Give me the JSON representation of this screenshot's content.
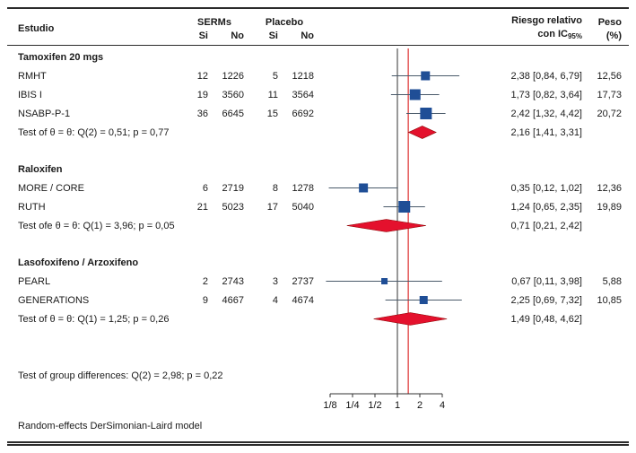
{
  "header": {
    "study": "Estudio",
    "serms": "SERMs",
    "placebo": "Placebo",
    "si": "Si",
    "no": "No",
    "rr_line1": "Riesgo relativo",
    "rr_line2": "con IC",
    "rr_sub": "95%",
    "peso_line1": "Peso",
    "peso_line2": "(%)"
  },
  "footer": {
    "group_diff": "Test of group differences: Q(2) = 2,98; p = 0,22",
    "model": "Random-effects DerSimonian-Laird model"
  },
  "chart_data": {
    "type": "forest",
    "x_scale": "log2",
    "x_ticks": [
      {
        "label": "1/8",
        "value": 0.125
      },
      {
        "label": "1/4",
        "value": 0.25
      },
      {
        "label": "1/2",
        "value": 0.5
      },
      {
        "label": "1",
        "value": 1
      },
      {
        "label": "2",
        "value": 2
      },
      {
        "label": "4",
        "value": 4
      }
    ],
    "null_line_value": 1,
    "overall_line_value": 1.4,
    "colors": {
      "square": "#1f4e96",
      "ci": "#4a5a6a",
      "diamond": "#e4112d",
      "diamond_edge": "#8b0000",
      "ref_line": "#333333",
      "overall_line": "#e03c3c",
      "axis": "#333333"
    },
    "groups": [
      {
        "title": "Tamoxifen 20 mgs",
        "studies": [
          {
            "name": "RMHT",
            "serms_si": "12",
            "serms_no": "1226",
            "placebo_si": "5",
            "placebo_no": "1218",
            "est": 2.38,
            "lo": 0.84,
            "hi": 6.79,
            "rr_text": "2,38 [0,84, 6,79]",
            "weight": "12,56",
            "w": 12.56
          },
          {
            "name": "IBIS I",
            "serms_si": "19",
            "serms_no": "3560",
            "placebo_si": "11",
            "placebo_no": "3564",
            "est": 1.73,
            "lo": 0.82,
            "hi": 3.64,
            "rr_text": "1,73 [0,82, 3,64]",
            "weight": "17,73",
            "w": 17.73
          },
          {
            "name": "NSABP-P-1",
            "serms_si": "36",
            "serms_no": "6645",
            "placebo_si": "15",
            "placebo_no": "6692",
            "est": 2.42,
            "lo": 1.32,
            "hi": 4.42,
            "rr_text": "2,42 [1,32, 4,42]",
            "weight": "20,72",
            "w": 20.72
          }
        ],
        "summary": {
          "label": "Test of θ = θ: Q(2) = 0,51; p = 0,77",
          "est": 2.16,
          "lo": 1.41,
          "hi": 3.31,
          "rr_text": "2,16 [1,41, 3,31]"
        }
      },
      {
        "title": "Raloxifen",
        "studies": [
          {
            "name": "MORE / CORE",
            "serms_si": "6",
            "serms_no": "2719",
            "placebo_si": "8",
            "placebo_no": "1278",
            "est": 0.35,
            "lo": 0.12,
            "hi": 1.02,
            "rr_text": "0,35 [0,12, 1,02]",
            "weight": "12,36",
            "w": 12.36
          },
          {
            "name": "RUTH",
            "serms_si": "21",
            "serms_no": "5023",
            "placebo_si": "17",
            "placebo_no": "5040",
            "est": 1.24,
            "lo": 0.65,
            "hi": 2.35,
            "rr_text": "1,24 [0,65, 2,35]",
            "weight": "19,89",
            "w": 19.89
          }
        ],
        "summary": {
          "label": "Test ofe θ = θ: Q(1) = 3,96; p = 0,05",
          "est": 0.71,
          "lo": 0.21,
          "hi": 2.42,
          "rr_text": "0,71 [0,21, 2,42]"
        }
      },
      {
        "title": "Lasofoxifeno / Arzoxifeno",
        "studies": [
          {
            "name": "PEARL",
            "serms_si": "2",
            "serms_no": "2743",
            "placebo_si": "3",
            "placebo_no": "2737",
            "est": 0.67,
            "lo": 0.11,
            "hi": 3.98,
            "rr_text": "0,67 [0,11, 3,98]",
            "weight": "5,88",
            "w": 5.88
          },
          {
            "name": "GENERATIONS",
            "serms_si": "9",
            "serms_no": "4667",
            "placebo_si": "4",
            "placebo_no": "4674",
            "est": 2.25,
            "lo": 0.69,
            "hi": 7.32,
            "rr_text": "2,25 [0,69, 7,32]",
            "weight": "10,85",
            "w": 10.85
          }
        ],
        "summary": {
          "label": "Test of θ = θ: Q(1) = 1,25;  p = 0,26",
          "est": 1.49,
          "lo": 0.48,
          "hi": 4.62,
          "rr_text": "1,49 [0,48, 4,62]"
        }
      }
    ]
  }
}
